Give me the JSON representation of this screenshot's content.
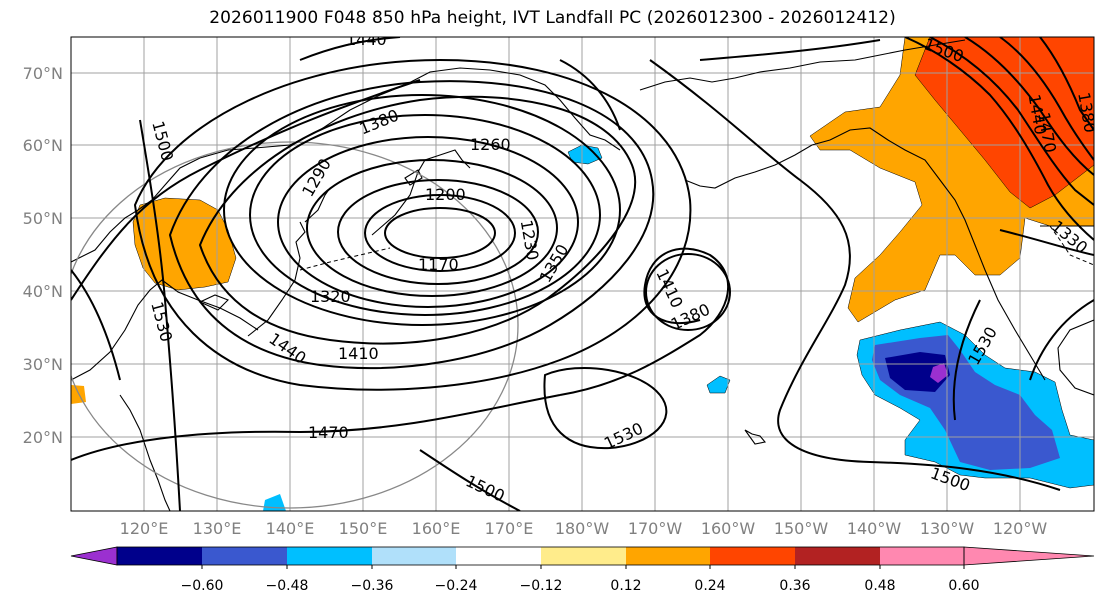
{
  "title": "2026011900 F048 850 hPa height, IVT Landfall PC (2026012300 - 2026012412)",
  "latitude_labels": [
    "70°N",
    "60°N",
    "50°N",
    "40°N",
    "30°N",
    "20°N"
  ],
  "longitude_labels": [
    "120°E",
    "130°E",
    "140°E",
    "150°E",
    "160°E",
    "170°E",
    "180°W",
    "170°W",
    "160°W",
    "150°W",
    "140°W",
    "130°W",
    "120°W"
  ],
  "contour_labels": [
    "1440",
    "1500",
    "1380",
    "1260",
    "1290",
    "1200",
    "1170",
    "1230",
    "1350",
    "1410",
    "1380",
    "1320",
    "1410",
    "1440",
    "1470",
    "1530",
    "1500",
    "1500",
    "1440",
    "1470",
    "1380",
    "1530",
    "1500",
    "1330",
    "1530"
  ],
  "colorbar": {
    "ticks": [
      "−0.60",
      "−0.48",
      "−0.36",
      "−0.24",
      "−0.12",
      "0.12",
      "0.24",
      "0.36",
      "0.48",
      "0.60"
    ],
    "colors": [
      "#9b30d0",
      "#00008b",
      "#3a58cf",
      "#00bfff",
      "#b0e0fa",
      "#ffffff",
      "#ffec8b",
      "#ffa500",
      "#ff4500",
      "#b22222",
      "#ff88b0"
    ]
  },
  "colors": {
    "negative_core": "#00008b",
    "negative_mid": "#3a58cf",
    "negative_light": "#00bfff",
    "positive_light": "#ffa500",
    "positive_strong": "#ff4500",
    "contour": "#000000",
    "grid": "#a0a0a0"
  }
}
